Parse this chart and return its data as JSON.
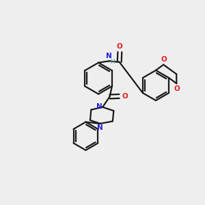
{
  "bg_color": "#eeeeee",
  "bond_color": "#1a1a1a",
  "N_color": "#2020dd",
  "O_color": "#dd2020",
  "H_color": "#4a9a9a",
  "bond_width": 1.6,
  "fig_width": 3.0,
  "fig_height": 3.0,
  "dpi": 100,
  "xlim": [
    0,
    10
  ],
  "ylim": [
    0,
    10
  ]
}
